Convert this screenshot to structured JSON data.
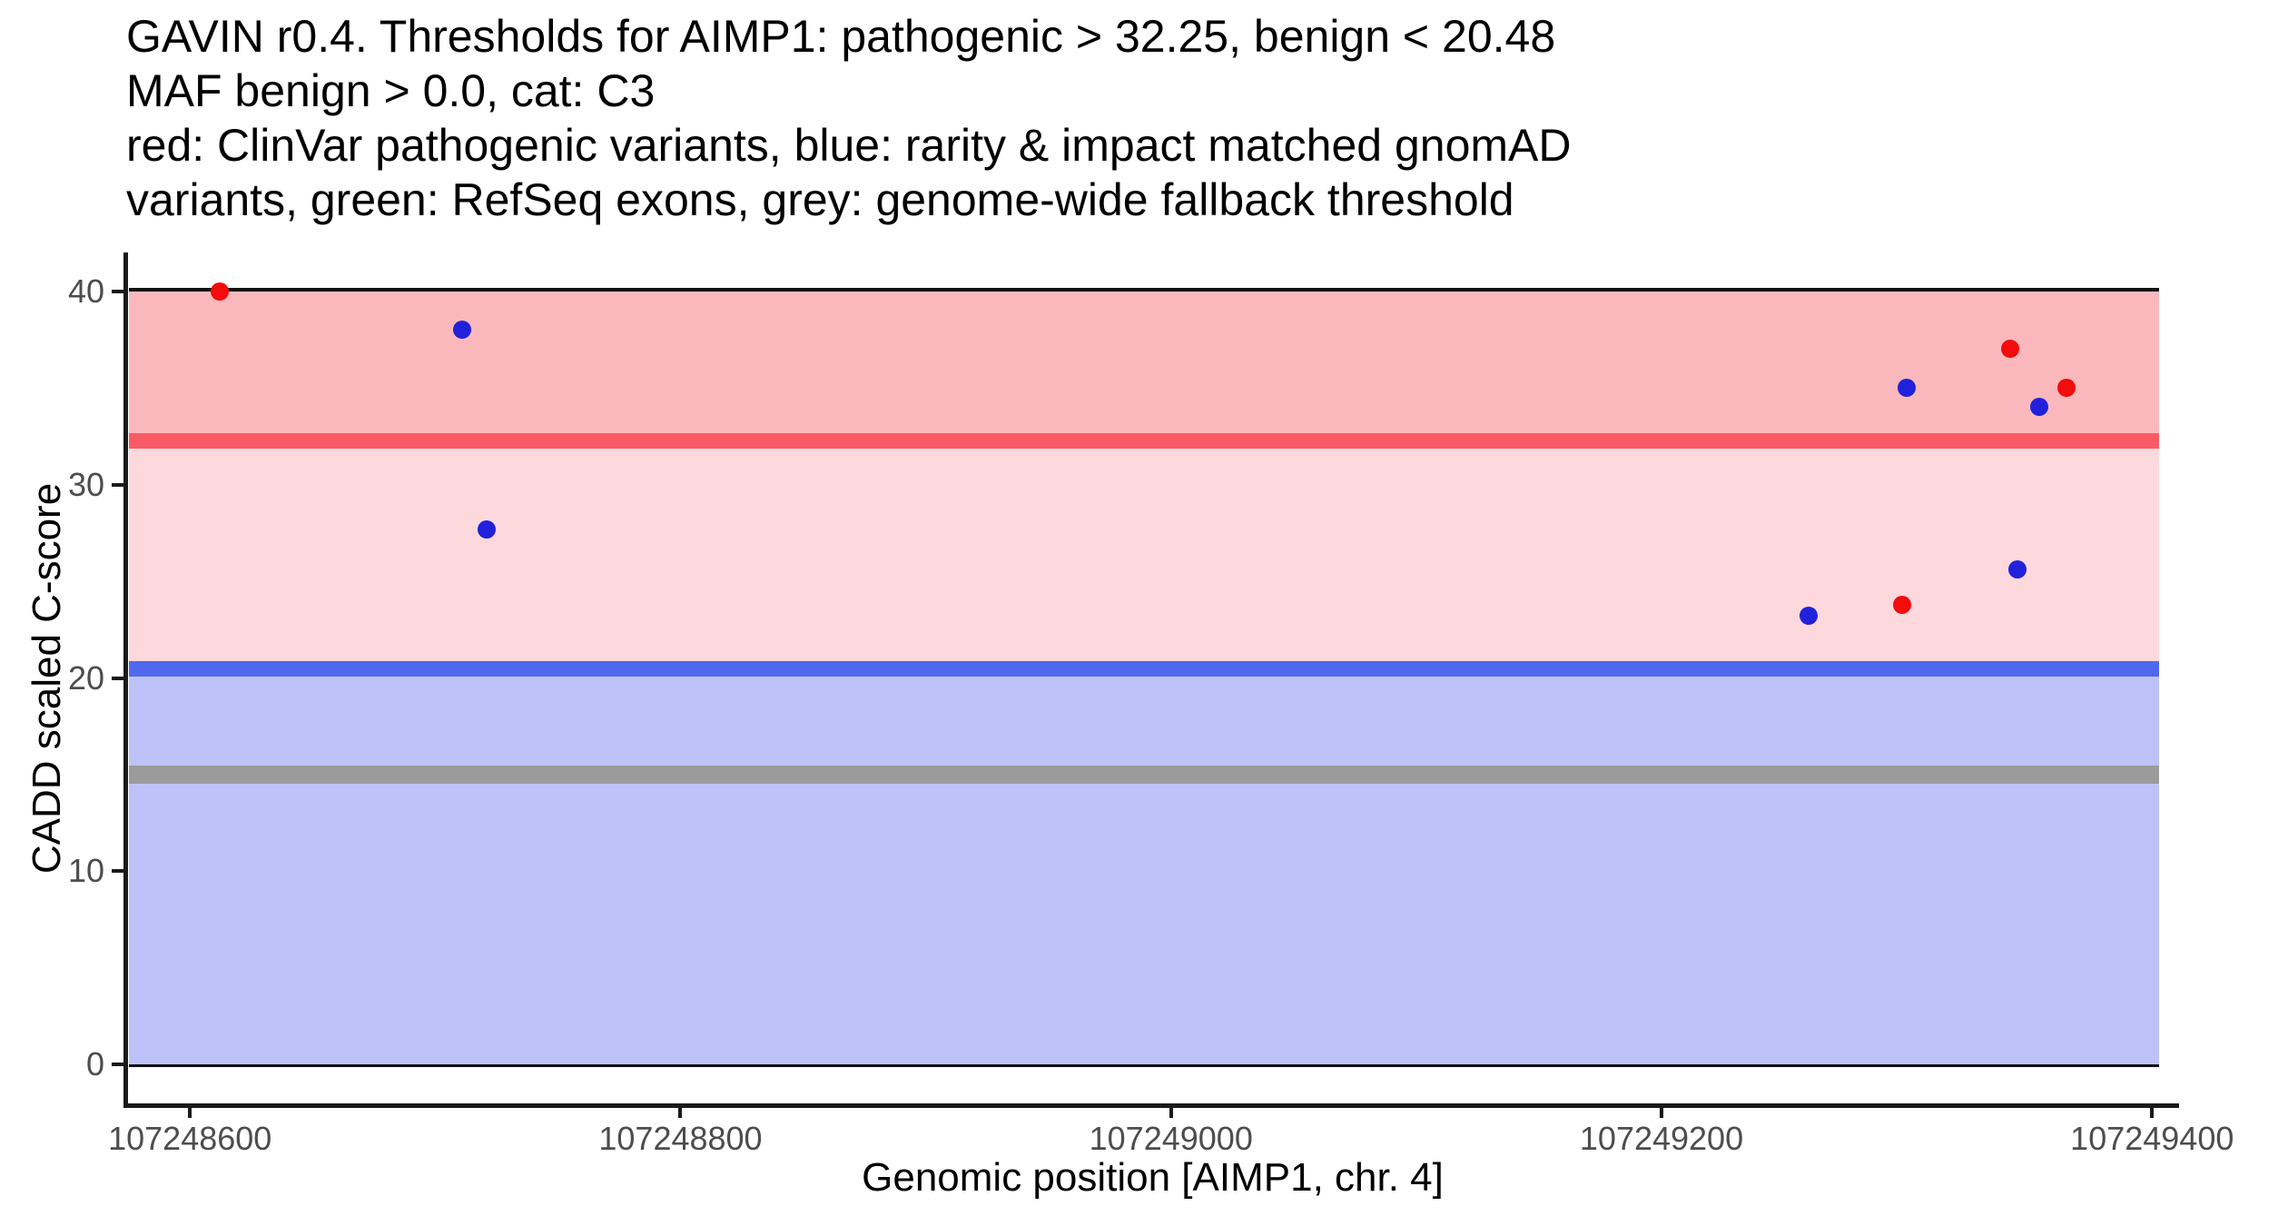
{
  "title": {
    "line1": "GAVIN r0.4. Thresholds for AIMP1: pathogenic > 32.25, benign < 20.48",
    "line2": "MAF benign > 0.0, cat: C3",
    "line3": "red: ClinVar pathogenic variants, blue: rarity & impact matched gnomAD",
    "line4": "variants, green: RefSeq exons, grey: genome-wide fallback threshold"
  },
  "chart_data": {
    "type": "scatter",
    "title": "GAVIN r0.4. Thresholds for AIMP1: pathogenic > 32.25, benign < 20.48 MAF benign > 0.0, cat: C3",
    "xlabel": "Genomic position [AIMP1, chr. 4]",
    "ylabel": "CADD scaled C-score",
    "xlim": [
      107248574,
      107249411
    ],
    "ylim": [
      -2,
      42
    ],
    "x_ticks": [
      107248600,
      107248800,
      107249000,
      107249200,
      107249400
    ],
    "x_tick_labels": [
      "107248600",
      "107248800",
      "107249000",
      "107249200",
      "107249400"
    ],
    "y_ticks": [
      0,
      10,
      20,
      30,
      40
    ],
    "y_tick_labels": [
      "0",
      "10",
      "20",
      "30",
      "40"
    ],
    "grid": false,
    "legend_position": "none",
    "thresholds": {
      "pathogenic": 32.25,
      "benign": 20.48,
      "genome_wide_fallback": 15
    },
    "band_x_range": [
      107248575,
      107249403
    ],
    "zones": [
      {
        "label": "pathogenic-zone",
        "y_from": 32.25,
        "y_to": 40,
        "fill": "#fab8bd"
      },
      {
        "label": "intermediate-zone",
        "y_from": 20.48,
        "y_to": 32.25,
        "fill": "#fdd9dd"
      },
      {
        "label": "benign-zone",
        "y_from": 0,
        "y_to": 20.48,
        "fill": "#bdc3f8"
      }
    ],
    "threshold_stripes": [
      {
        "label": "pathogenic-threshold-line",
        "y": 32.25,
        "half_height": 0.4,
        "fill": "#fa5a64"
      },
      {
        "label": "benign-threshold-line",
        "y": 20.48,
        "half_height": 0.4,
        "fill": "#5068ee"
      },
      {
        "label": "genome-wide-fallback-line",
        "y": 15,
        "half_height": 0.47,
        "fill": "#9b9b9b"
      }
    ],
    "series": [
      {
        "name": "ClinVar pathogenic variants",
        "point_name": "clinvar-pathogenic-point",
        "color": "#f20c0c",
        "points": [
          [
            107248612,
            40.0
          ],
          [
            107249342,
            37.0
          ],
          [
            107249365,
            35.0
          ],
          [
            107249298,
            23.8
          ]
        ]
      },
      {
        "name": "rarity & impact matched gnomAD variants",
        "point_name": "gnomad-matched-point",
        "color": "#2121dc",
        "points": [
          [
            107248711,
            38.0
          ],
          [
            107248721,
            27.7
          ],
          [
            107249300,
            35.0
          ],
          [
            107249354,
            34.0
          ],
          [
            107249345,
            25.6
          ],
          [
            107249260,
            23.2
          ]
        ]
      }
    ]
  },
  "colors": {
    "pathogenic_zone": "#fab8bd",
    "intermediate_zone": "#fdd9dd",
    "benign_zone": "#bdc3f8",
    "pathogenic_line": "#fa5a64",
    "benign_line": "#5068ee",
    "fallback_line": "#9b9b9b",
    "clinvar_point": "#f20c0c",
    "gnomad_point": "#2121dc",
    "axis_text": "#4d4d4d",
    "axis_line": "#1a1a1a",
    "band_border": "#111111",
    "background": "#ffffff"
  }
}
